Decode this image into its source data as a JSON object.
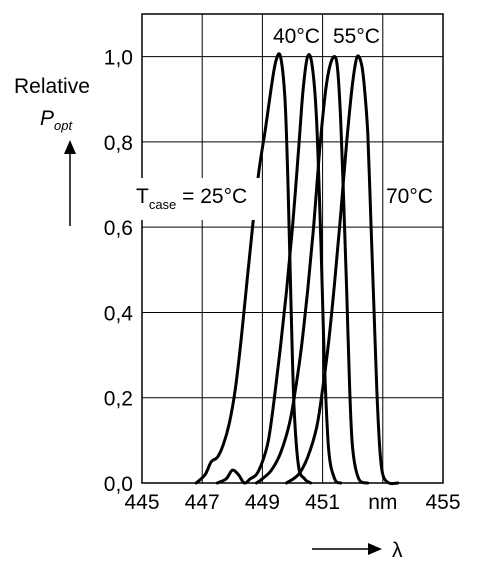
{
  "chart_data": {
    "type": "line",
    "xlim": [
      445,
      455
    ],
    "ylim": [
      0,
      1.1
    ],
    "x_ticks": [
      445,
      447,
      449,
      451,
      453,
      455
    ],
    "x_tick_labels": [
      "445",
      "447",
      "449",
      "451",
      "nm",
      "455"
    ],
    "y_ticks": [
      0,
      0.2,
      0.4,
      0.6,
      0.8,
      1.0
    ],
    "y_tick_labels": [
      "0,0",
      "0,2",
      "0,4",
      "0,6",
      "0,8",
      "1,0"
    ],
    "grid": true,
    "ylabel": {
      "line1": "Relative",
      "p": "P",
      "sub": "opt"
    },
    "xlabel": "λ",
    "series": [
      {
        "name": "25°C",
        "x": [
          446.8,
          447.1,
          447.3,
          447.5,
          447.7,
          447.9,
          448.1,
          448.3,
          448.5,
          448.7,
          448.9,
          449.1,
          449.3,
          449.45,
          449.6,
          449.75,
          449.85,
          449.95,
          450.05,
          450.2,
          450.4,
          450.6
        ],
        "y": [
          0.0,
          0.02,
          0.05,
          0.06,
          0.09,
          0.14,
          0.22,
          0.34,
          0.48,
          0.62,
          0.74,
          0.83,
          0.93,
          0.99,
          1.0,
          0.9,
          0.7,
          0.42,
          0.18,
          0.04,
          0.01,
          0.0
        ]
      },
      {
        "name": "40°C",
        "x": [
          447.5,
          447.8,
          448.0,
          448.2,
          448.4,
          448.6,
          448.8,
          449.0,
          449.2,
          449.4,
          449.6,
          449.8,
          450.0,
          450.2,
          450.35,
          450.5,
          450.65,
          450.8,
          450.95,
          451.05,
          451.2,
          451.4,
          451.6
        ],
        "y": [
          0.0,
          0.01,
          0.03,
          0.02,
          0.0,
          0.01,
          0.02,
          0.05,
          0.1,
          0.2,
          0.32,
          0.45,
          0.6,
          0.78,
          0.92,
          1.0,
          0.98,
          0.85,
          0.55,
          0.3,
          0.08,
          0.01,
          0.0
        ]
      },
      {
        "name": "55°C",
        "x": [
          448.8,
          449.0,
          449.3,
          449.6,
          449.9,
          450.1,
          450.3,
          450.5,
          450.7,
          450.9,
          451.1,
          451.25,
          451.4,
          451.5,
          451.6,
          451.7,
          451.8,
          451.9,
          452.0,
          452.2,
          452.5
        ],
        "y": [
          0.0,
          0.01,
          0.03,
          0.07,
          0.14,
          0.22,
          0.32,
          0.45,
          0.6,
          0.78,
          0.92,
          0.98,
          1.0,
          0.97,
          0.85,
          0.66,
          0.45,
          0.22,
          0.08,
          0.01,
          0.0
        ]
      },
      {
        "name": "70°C",
        "x": [
          449.8,
          450.2,
          450.5,
          450.8,
          451.0,
          451.2,
          451.4,
          451.6,
          451.8,
          452.0,
          452.15,
          452.3,
          452.4,
          452.5,
          452.6,
          452.7,
          452.8,
          452.9,
          453.0,
          453.2,
          453.5
        ],
        "y": [
          0.0,
          0.02,
          0.06,
          0.13,
          0.22,
          0.33,
          0.47,
          0.63,
          0.8,
          0.94,
          1.0,
          0.98,
          0.92,
          0.82,
          0.62,
          0.42,
          0.22,
          0.08,
          0.02,
          0.0,
          0.0
        ]
      }
    ],
    "annotations": {
      "t_case_prefix": "T",
      "t_case_sub": "case",
      "t_case_value": " = 25°C",
      "label_40": "40°C",
      "label_55": "55°C",
      "label_70": "70°C"
    }
  }
}
